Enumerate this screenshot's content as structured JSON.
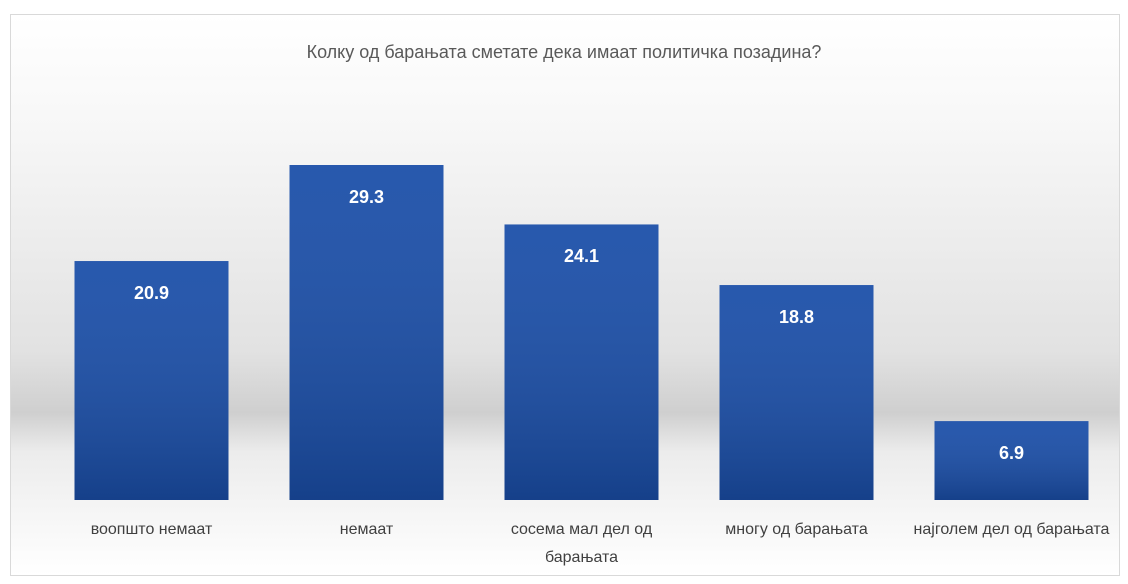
{
  "chart_data": {
    "type": "bar",
    "title": "Колку од барањата сметате дека имаат политичка позадина?",
    "categories": [
      "воопшто немаат",
      "немаат",
      "сосема мал дел од барањата",
      "многу од барањата",
      "најголем дел од барањата"
    ],
    "values": [
      20.9,
      29.3,
      24.1,
      18.8,
      6.9
    ],
    "color": "#1a4ea8"
  }
}
